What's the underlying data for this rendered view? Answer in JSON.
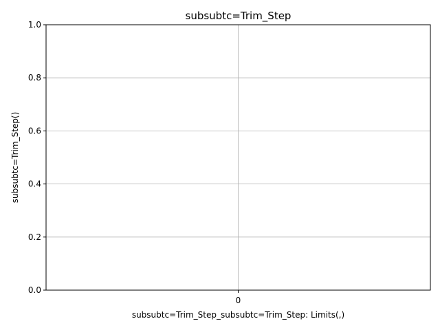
{
  "chart_data": {
    "type": "bar",
    "title": "subsubtc=Trim_Step",
    "xlabel": "subsubtc=Trim_Step_subsubtc=Trim_Step: Limits(,)",
    "ylabel": "subsubtc=Trim_Step()",
    "categories": [
      "0"
    ],
    "series": [],
    "xlim": [
      -0.5,
      0.5
    ],
    "ylim": [
      0,
      1
    ],
    "y_ticks": [
      "0.0",
      "0.2",
      "0.4",
      "0.6",
      "0.8",
      "1.0"
    ],
    "y_tick_values": [
      0,
      0.2,
      0.4,
      0.6,
      0.8,
      1.0
    ],
    "grid": true,
    "legend": "none"
  }
}
